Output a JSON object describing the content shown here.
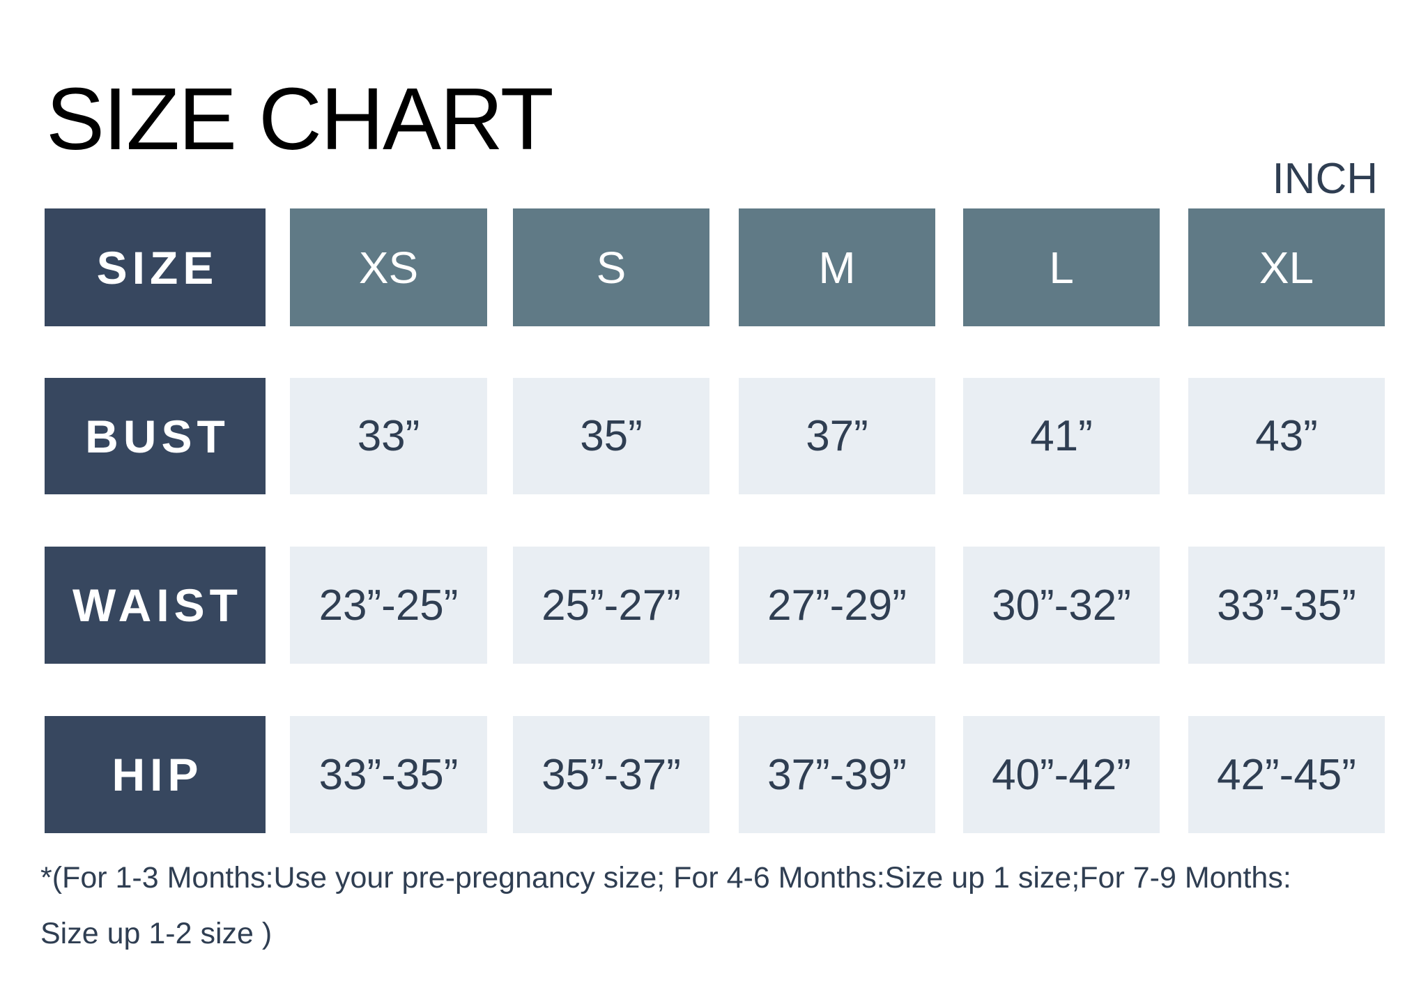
{
  "title": "SIZE CHART",
  "unit": "INCH",
  "colors": {
    "label_bg": "#37475f",
    "header_bg": "#607a86",
    "value_bg": "#e9eef3",
    "value_text": "#2f3e52"
  },
  "header": {
    "label": "SIZE",
    "sizes": [
      "XS",
      "S",
      "M",
      "L",
      "XL"
    ]
  },
  "rows": [
    {
      "label": "BUST",
      "values": [
        "33”",
        "35”",
        "37”",
        "41”",
        "43”"
      ]
    },
    {
      "label": "WAIST",
      "values": [
        "23”-25”",
        "25”-27”",
        "27”-29”",
        "30”-32”",
        "33”-35”"
      ]
    },
    {
      "label": "HIP",
      "values": [
        "33”-35”",
        "35”-37”",
        "37”-39”",
        "40”-42”",
        "42”-45”"
      ]
    }
  ],
  "footnote": {
    "line1": "*(For 1-3 Months:Use your pre-pregnancy size; For 4-6 Months:Size up 1 size;For 7-9 Months:",
    "line2": "Size up 1-2 size )"
  }
}
